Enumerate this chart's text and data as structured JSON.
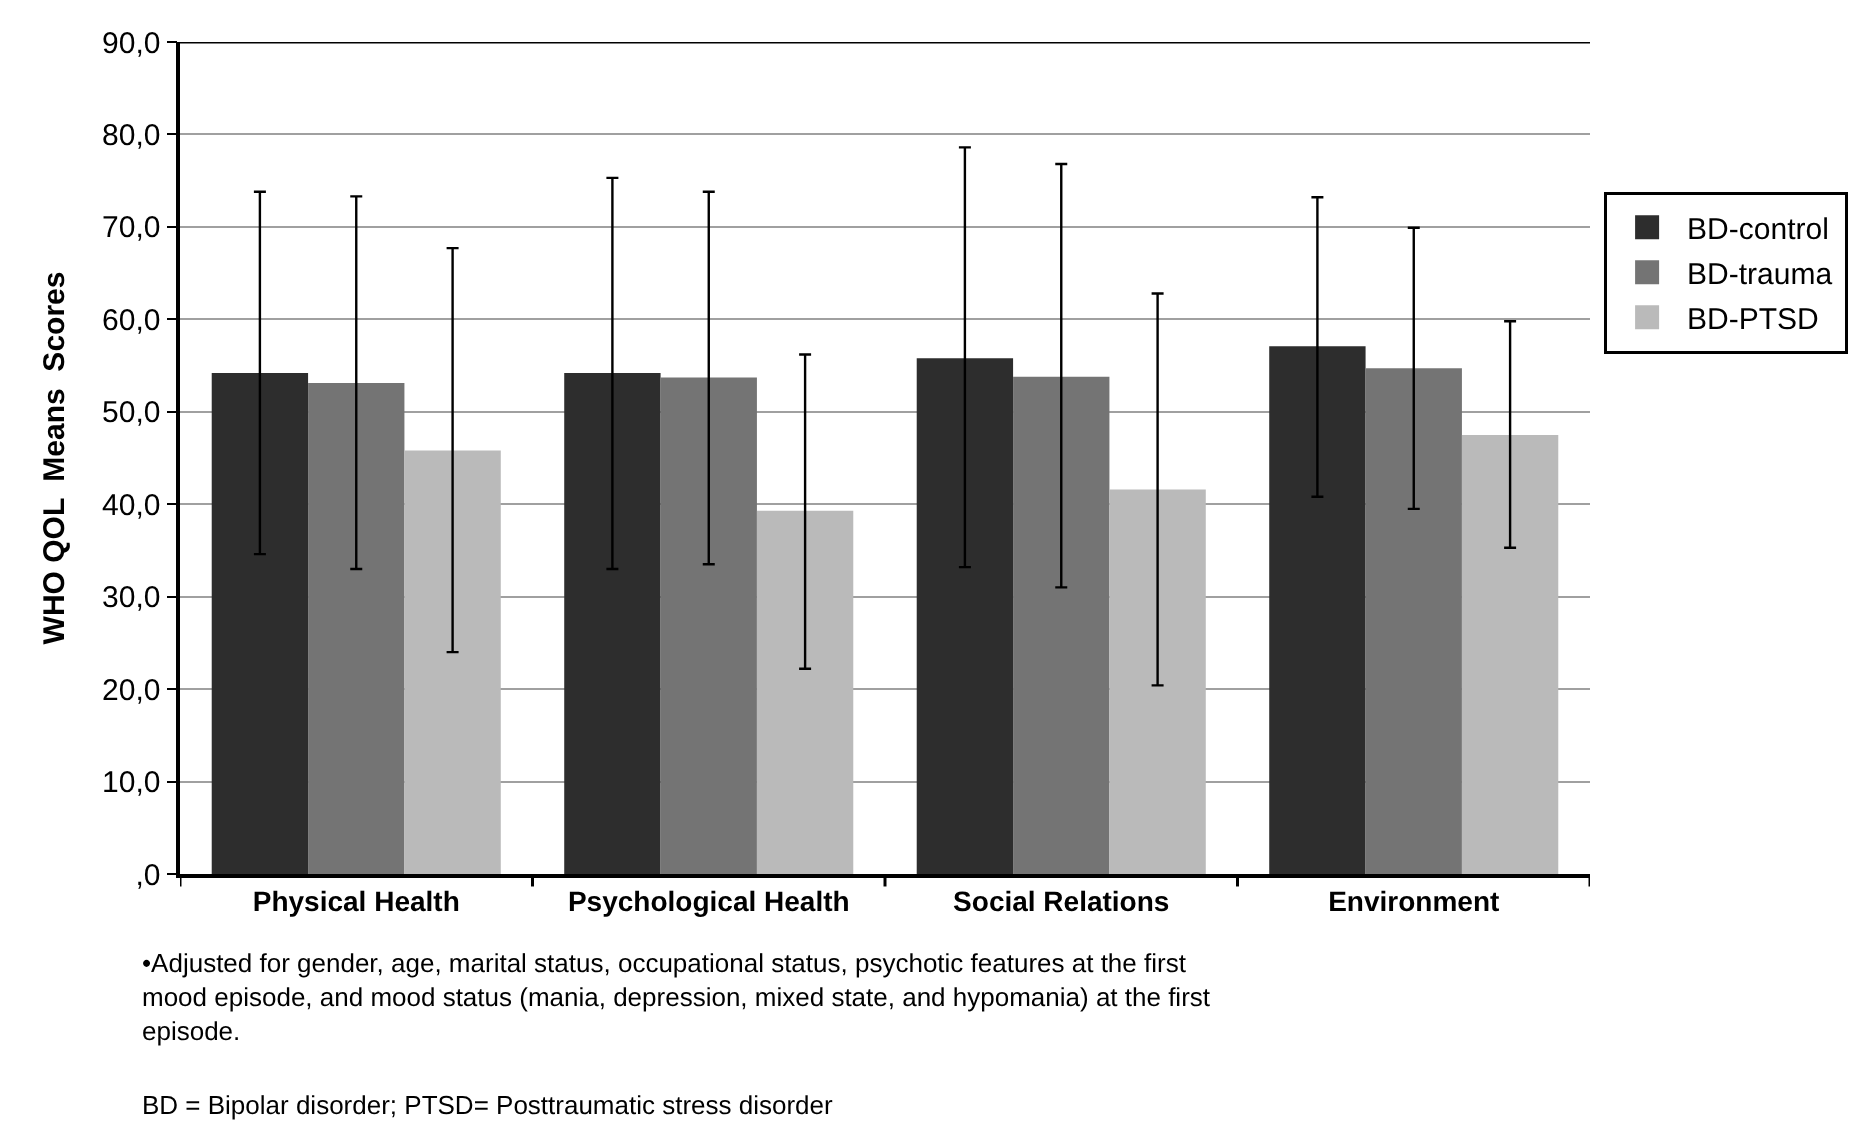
{
  "chart_data": {
    "type": "bar",
    "ylabel": "WHO QOL  Means  Scores",
    "categories": [
      "Physical Health",
      "Psychological Health",
      "Social Relations",
      "Environment"
    ],
    "series": [
      {
        "name": "BD-control",
        "color": "#2d2d2d",
        "values": [
          54.2,
          54.2,
          55.8,
          57.1
        ],
        "errors": [
          [
            34.6,
            73.8
          ],
          [
            33.0,
            75.3
          ],
          [
            33.2,
            78.6
          ],
          [
            40.8,
            73.2
          ]
        ]
      },
      {
        "name": "BD-trauma",
        "color": "#747474",
        "values": [
          53.1,
          53.7,
          53.8,
          54.7
        ],
        "errors": [
          [
            33.0,
            73.3
          ],
          [
            33.5,
            73.8
          ],
          [
            31.0,
            76.8
          ],
          [
            39.5,
            69.9
          ]
        ]
      },
      {
        "name": "BD-PTSD",
        "color": "#bababa",
        "values": [
          45.8,
          39.3,
          41.6,
          47.5
        ],
        "errors": [
          [
            24.0,
            67.7
          ],
          [
            22.2,
            56.2
          ],
          [
            20.4,
            62.8
          ],
          [
            35.3,
            59.8
          ]
        ]
      }
    ],
    "ylim": [
      0,
      90
    ],
    "yticks": [
      {
        "value": 0,
        "label": ",0"
      },
      {
        "value": 10,
        "label": "10,0"
      },
      {
        "value": 20,
        "label": "20,0"
      },
      {
        "value": 30,
        "label": "30,0"
      },
      {
        "value": 40,
        "label": "40,0"
      },
      {
        "value": 50,
        "label": "50,0"
      },
      {
        "value": 60,
        "label": "60,0"
      },
      {
        "value": 70,
        "label": "70,0"
      },
      {
        "value": 80,
        "label": "80,0"
      },
      {
        "value": 90,
        "label": "90,0"
      }
    ],
    "grid": "y",
    "legend": "right",
    "annotations": [
      "•Adjusted for gender, age, marital status, occupational status, psychotic features at the first\nmood episode, and mood status (mania, depression, mixed state, and hypomania) at the first\nepisode.",
      "BD = Bipolar disorder; PTSD= Posttraumatic stress disorder"
    ]
  }
}
